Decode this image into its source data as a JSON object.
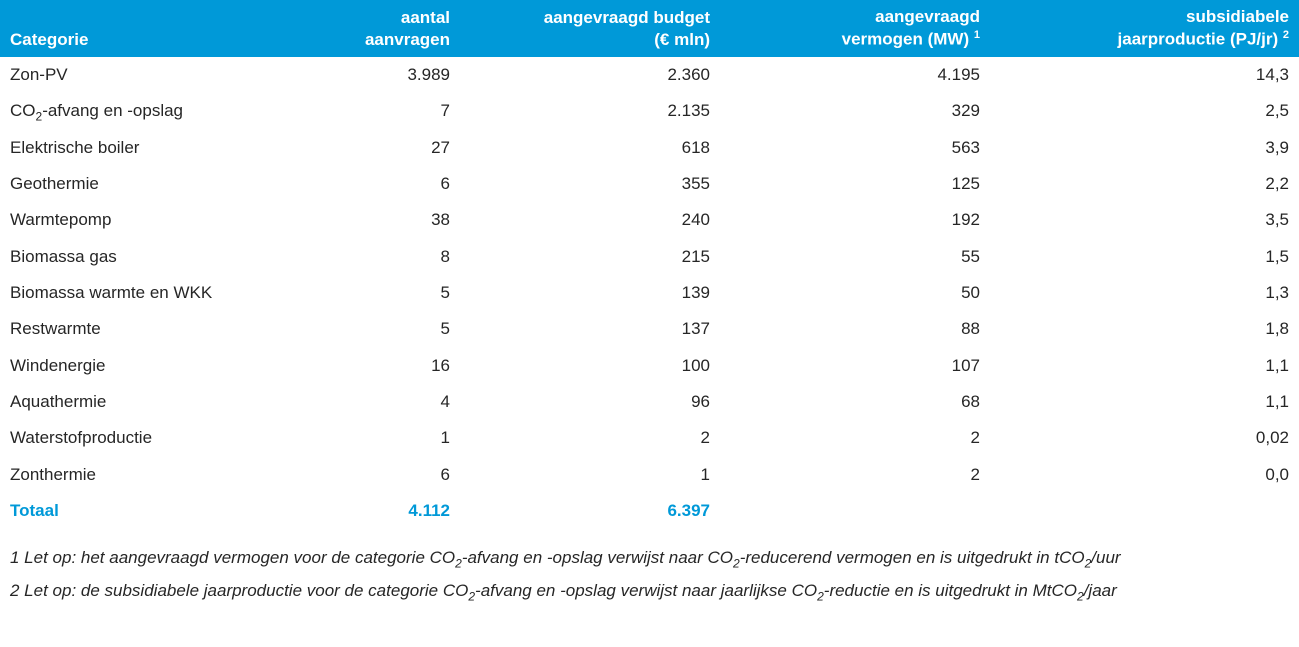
{
  "colors": {
    "header_bg": "#0099d8",
    "header_text": "#ffffff",
    "body_text": "#262626",
    "total_text": "#0099d8",
    "background": "#ffffff"
  },
  "table": {
    "type": "table",
    "columns": [
      {
        "label": "Categorie",
        "align": "left"
      },
      {
        "line1": "aantal",
        "line2": "aanvragen",
        "align": "right"
      },
      {
        "line1": "aangevraagd budget",
        "line2": "(€ mln)",
        "align": "right"
      },
      {
        "line1": "aangevraagd",
        "line2_prefix": "vermogen (MW)",
        "sup": "1",
        "align": "right"
      },
      {
        "line1": "subsidiabele",
        "line2_prefix": "jaarproductie (PJ/jr)",
        "sup": "2",
        "align": "right"
      }
    ],
    "rows": [
      {
        "cat": "Zon-PV",
        "aanvragen": "3.989",
        "budget": "2.360",
        "vermogen": "4.195",
        "jaarprod": "14,3"
      },
      {
        "cat_html": true,
        "cat_pre": "CO",
        "cat_sub": "2",
        "cat_post": "-afvang en -opslag",
        "aanvragen": "7",
        "budget": "2.135",
        "vermogen": "329",
        "jaarprod": "2,5"
      },
      {
        "cat": "Elektrische boiler",
        "aanvragen": "27",
        "budget": "618",
        "vermogen": "563",
        "jaarprod": "3,9"
      },
      {
        "cat": "Geothermie",
        "aanvragen": "6",
        "budget": "355",
        "vermogen": "125",
        "jaarprod": "2,2"
      },
      {
        "cat": "Warmtepomp",
        "aanvragen": "38",
        "budget": "240",
        "vermogen": "192",
        "jaarprod": "3,5"
      },
      {
        "cat": "Biomassa gas",
        "aanvragen": "8",
        "budget": "215",
        "vermogen": "55",
        "jaarprod": "1,5"
      },
      {
        "cat": "Biomassa warmte en WKK",
        "aanvragen": "5",
        "budget": "139",
        "vermogen": "50",
        "jaarprod": "1,3"
      },
      {
        "cat": "Restwarmte",
        "aanvragen": "5",
        "budget": "137",
        "vermogen": "88",
        "jaarprod": "1,8"
      },
      {
        "cat": "Windenergie",
        "aanvragen": "16",
        "budget": "100",
        "vermogen": "107",
        "jaarprod": "1,1"
      },
      {
        "cat": "Aquathermie",
        "aanvragen": "4",
        "budget": "96",
        "vermogen": "68",
        "jaarprod": "1,1"
      },
      {
        "cat": "Waterstofproductie",
        "aanvragen": "1",
        "budget": "2",
        "vermogen": "2",
        "jaarprod": "0,02"
      },
      {
        "cat": "Zonthermie",
        "aanvragen": "6",
        "budget": "1",
        "vermogen": "2",
        "jaarprod": "0,0"
      }
    ],
    "total": {
      "label": "Totaal",
      "aanvragen": "4.112",
      "budget": "6.397",
      "vermogen": "",
      "jaarprod": ""
    }
  },
  "footnotes": {
    "n1": {
      "prefix": "1 Let op: het aangevraagd vermogen voor de categorie CO",
      "sub": "2",
      "mid": "-afvang en -opslag verwijst naar CO",
      "sub2": "2",
      "mid2": "-reducerend vermogen en is uitgedrukt in tCO",
      "sub3": "2",
      "suffix": "/uur"
    },
    "n2": {
      "prefix": "2 Let op: de subsidiabele jaarproductie voor de categorie CO",
      "sub": "2",
      "mid": "-afvang en -opslag verwijst naar jaarlijkse CO",
      "sub2": "2",
      "mid2": "-reductie en is uitgedrukt in MtCO",
      "sub3": "2",
      "suffix": "/jaar"
    }
  }
}
